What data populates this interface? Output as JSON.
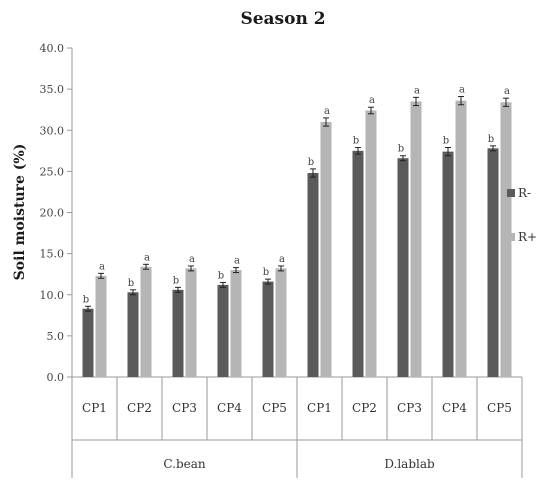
{
  "chart_data": {
    "type": "bar",
    "title": "Season 2",
    "ylabel": "Soil moisture (%)",
    "xlabel": "",
    "ylim": [
      0,
      40
    ],
    "yticks": [
      "0.0",
      "5.0",
      "10.0",
      "15.0",
      "20.0",
      "25.0",
      "30.0",
      "35.0",
      "40.0"
    ],
    "grid": false,
    "legend_position": "right",
    "groups": [
      {
        "name": "C.bean",
        "categories": [
          "CP1",
          "CP2",
          "CP3",
          "CP4",
          "CP5"
        ]
      },
      {
        "name": "D.lablab",
        "categories": [
          "CP1",
          "CP2",
          "CP3",
          "CP4",
          "CP5"
        ]
      }
    ],
    "series": [
      {
        "name": "R-",
        "color": "#5a5a5a",
        "values": [
          8.3,
          10.3,
          10.6,
          11.2,
          11.6,
          24.8,
          27.5,
          26.6,
          27.4,
          27.8
        ],
        "errors": [
          0.3,
          0.3,
          0.3,
          0.3,
          0.3,
          0.5,
          0.4,
          0.3,
          0.5,
          0.3
        ],
        "sig": [
          "b",
          "b",
          "b",
          "b",
          "b",
          "b",
          "b",
          "b",
          "b",
          "b"
        ]
      },
      {
        "name": "R+",
        "color": "#b5b5b5",
        "values": [
          12.3,
          13.4,
          13.2,
          13.0,
          13.2,
          31.0,
          32.4,
          33.5,
          33.6,
          33.4
        ],
        "errors": [
          0.3,
          0.3,
          0.3,
          0.3,
          0.3,
          0.5,
          0.4,
          0.5,
          0.5,
          0.5
        ],
        "sig": [
          "a",
          "a",
          "a",
          "a",
          "a",
          "a",
          "a",
          "a",
          "a",
          "a"
        ]
      }
    ]
  }
}
